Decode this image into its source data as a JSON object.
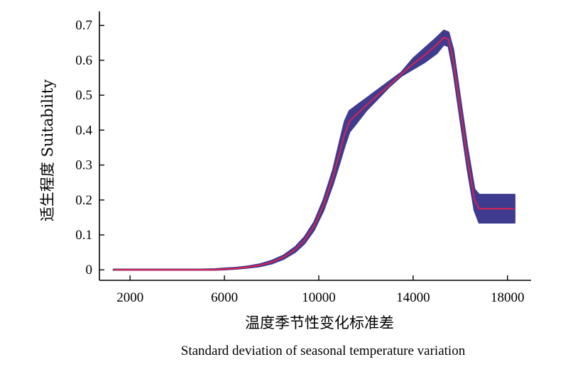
{
  "chart_data": {
    "type": "line",
    "title": "",
    "xlabel": "温度季节性变化标准差",
    "xlabel_en": "Standard deviation of seasonal temperature variation",
    "ylabel": "适生程度 Suitability",
    "xlim": [
      700,
      19000
    ],
    "ylim": [
      -0.03,
      0.74
    ],
    "xticks": [
      2000,
      6000,
      10000,
      14000,
      18000
    ],
    "yticks": [
      0,
      0.1,
      0.2,
      0.3,
      0.4,
      0.5,
      0.6,
      0.7
    ],
    "yticks_labels": [
      "0",
      "0.1",
      "0.2",
      "0.3",
      "0.4",
      "0.5",
      "0.6",
      "0.7"
    ],
    "colors": {
      "mean": "#e8204a",
      "band": "#3f3b8f"
    },
    "series": [
      {
        "x": [
          1300,
          2000,
          3000,
          4000,
          5000,
          5600,
          6000,
          6500,
          7000,
          7500,
          8000,
          8500,
          9000,
          9400,
          9800,
          10200,
          10600,
          10900,
          11100,
          11300,
          11600,
          12000,
          12500,
          13000,
          13500,
          14000,
          14500,
          15000,
          15300,
          15500,
          15700,
          16000,
          16300,
          16600,
          16800,
          17000,
          17500,
          18000,
          18300
        ],
        "y": [
          0.0,
          0.0,
          0.0,
          0.0,
          0.0,
          0.0,
          0.002,
          0.004,
          0.008,
          0.013,
          0.022,
          0.036,
          0.058,
          0.085,
          0.125,
          0.185,
          0.265,
          0.34,
          0.39,
          0.425,
          0.445,
          0.47,
          0.5,
          0.53,
          0.56,
          0.59,
          0.615,
          0.645,
          0.665,
          0.66,
          0.6,
          0.46,
          0.32,
          0.2,
          0.175,
          0.175,
          0.175,
          0.175,
          0.175
        ],
        "lower": [
          0.0,
          0.0,
          0.0,
          0.0,
          0.0,
          0.0,
          0.001,
          0.003,
          0.006,
          0.01,
          0.018,
          0.031,
          0.051,
          0.076,
          0.114,
          0.17,
          0.245,
          0.31,
          0.355,
          0.395,
          0.42,
          0.455,
          0.49,
          0.525,
          0.555,
          0.575,
          0.595,
          0.62,
          0.645,
          0.64,
          0.57,
          0.43,
          0.29,
          0.17,
          0.135,
          0.135,
          0.135,
          0.135,
          0.135
        ],
        "upper": [
          0.001,
          0.001,
          0.001,
          0.001,
          0.001,
          0.002,
          0.004,
          0.006,
          0.01,
          0.016,
          0.026,
          0.041,
          0.065,
          0.094,
          0.136,
          0.2,
          0.285,
          0.37,
          0.425,
          0.455,
          0.47,
          0.49,
          0.515,
          0.54,
          0.565,
          0.605,
          0.635,
          0.665,
          0.685,
          0.68,
          0.63,
          0.49,
          0.35,
          0.23,
          0.215,
          0.215,
          0.215,
          0.215,
          0.215
        ]
      }
    ]
  }
}
